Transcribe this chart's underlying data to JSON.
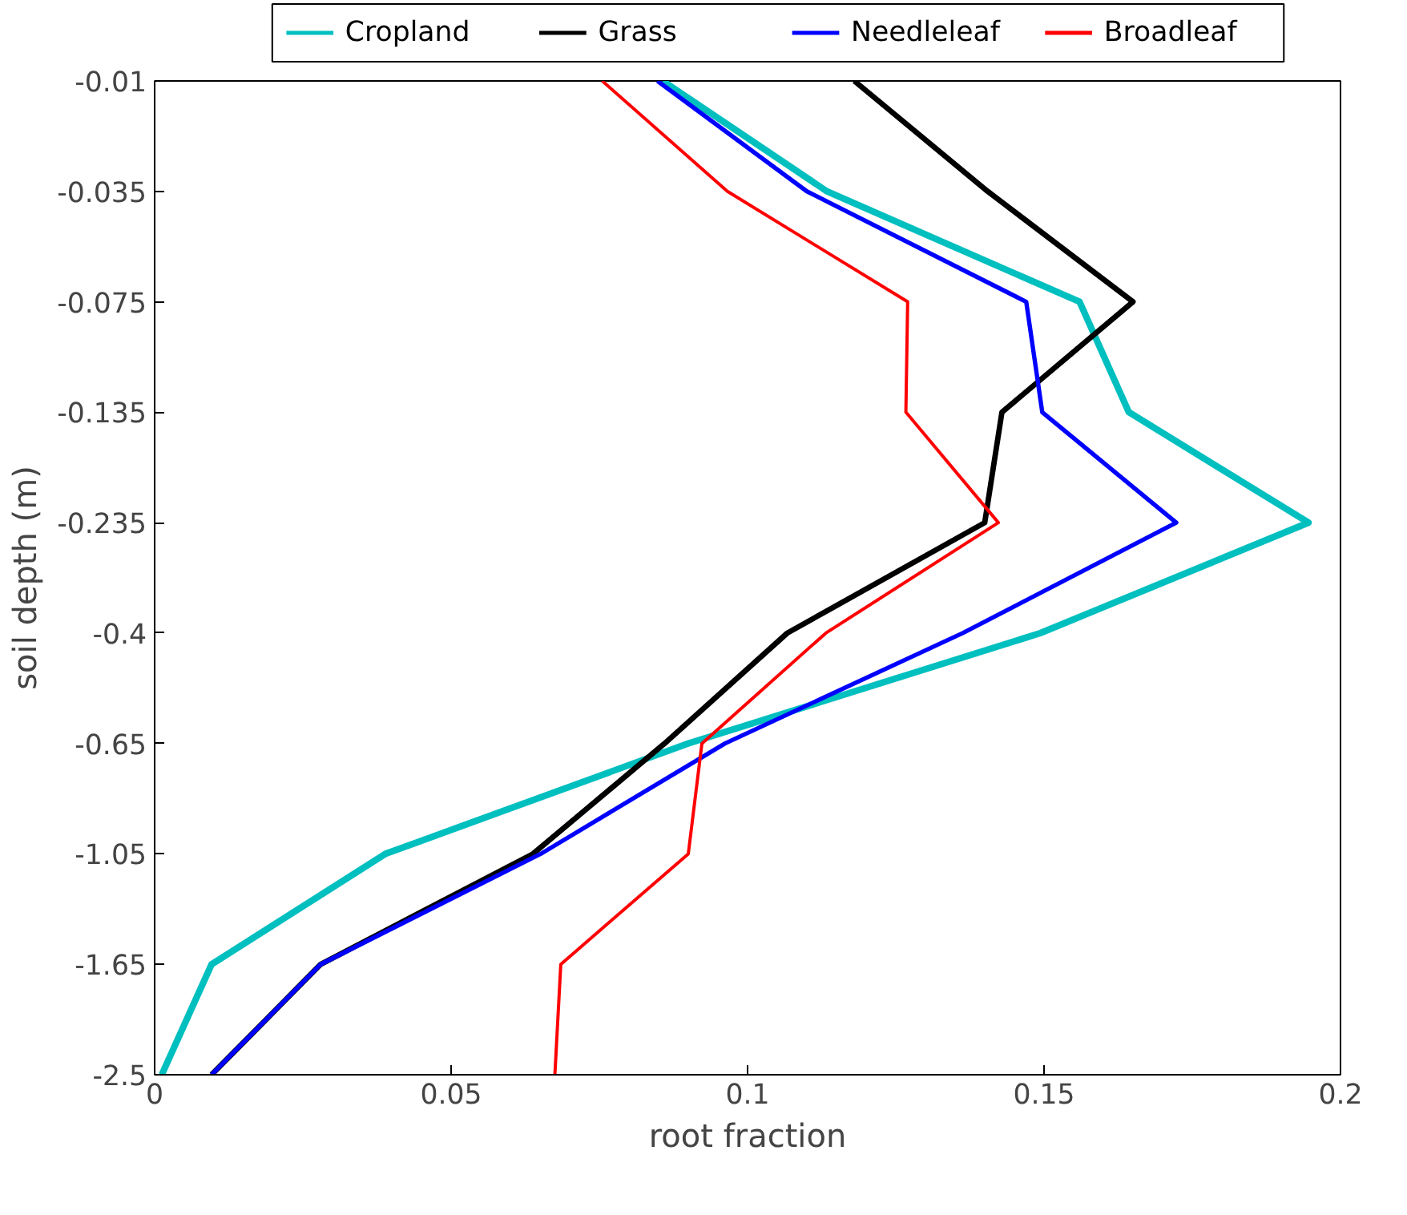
{
  "chart_data": {
    "type": "line",
    "orientation": "horizontal",
    "xlabel": "root fraction",
    "ylabel": "soil depth (m)",
    "categories": [
      "-0.01",
      "-0.035",
      "-0.075",
      "-0.135",
      "-0.235",
      "-0.4",
      "-0.65",
      "-1.05",
      "-1.65",
      "-2.5"
    ],
    "xlim": [
      0,
      0.2
    ],
    "xticks": [
      0,
      0.05,
      0.1,
      0.15,
      0.2
    ],
    "grid": false,
    "legend": "top",
    "series": [
      {
        "name": "Cropland",
        "color": "#00bfbf",
        "values": [
          0.0857,
          0.1134,
          0.156,
          0.1643,
          0.1946,
          0.1494,
          0.09,
          0.0389,
          0.0096,
          0.0012
        ]
      },
      {
        "name": "Grass",
        "color": "#000000",
        "values": [
          0.118,
          0.1405,
          0.165,
          0.1429,
          0.14,
          0.1067,
          0.086,
          0.0638,
          0.028,
          0.0096
        ]
      },
      {
        "name": "Needleleaf",
        "color": "#0000ff",
        "values": [
          0.0848,
          0.11,
          0.147,
          0.1497,
          0.1723,
          0.1363,
          0.0962,
          0.0651,
          0.028,
          0.0096
        ]
      },
      {
        "name": "Broadleaf",
        "color": "#ff0000",
        "values": [
          0.0755,
          0.0966,
          0.127,
          0.1267,
          0.1423,
          0.1132,
          0.0923,
          0.09,
          0.0685,
          0.0675
        ]
      }
    ]
  }
}
